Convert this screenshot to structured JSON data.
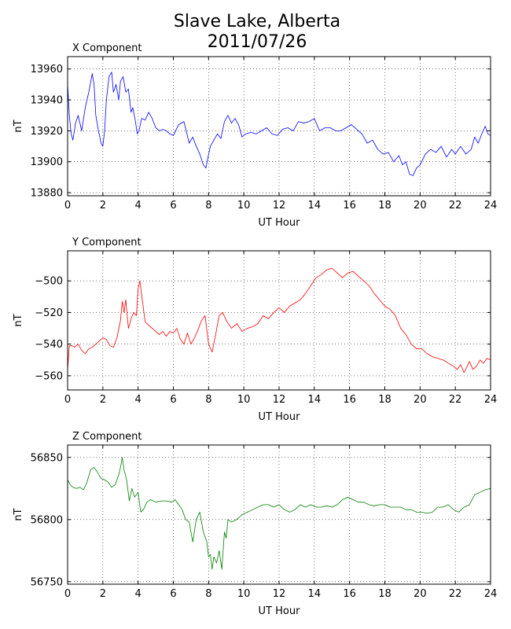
{
  "figure": {
    "title_line1": "Slave Lake, Alberta",
    "title_line2": "2011/07/26"
  },
  "chart_data": [
    {
      "type": "line",
      "title": "X Component",
      "xlabel": "UT Hour",
      "ylabel": "nT",
      "xlim": [
        0,
        24
      ],
      "ylim": [
        13878,
        13968
      ],
      "xticks": [
        0,
        2,
        4,
        6,
        8,
        10,
        12,
        14,
        16,
        18,
        20,
        22,
        24
      ],
      "yticks": [
        13880,
        13900,
        13920,
        13940,
        13960
      ],
      "grid": true,
      "color": "#0000ff",
      "series": [
        {
          "x": [
            0,
            0.1,
            0.2,
            0.3,
            0.45,
            0.6,
            0.8,
            1.0,
            1.2,
            1.4,
            1.5,
            1.6,
            1.75,
            1.9,
            2.0,
            2.1,
            2.2,
            2.35,
            2.5,
            2.6,
            2.75,
            2.9,
            3.0,
            3.15,
            3.3,
            3.45,
            3.6,
            3.7,
            3.85,
            3.95,
            4.05,
            4.2,
            4.4,
            4.6,
            4.8,
            5.0,
            5.2,
            5.4,
            5.6,
            5.8,
            6.0,
            6.3,
            6.6,
            6.9,
            7.1,
            7.3,
            7.5,
            7.7,
            7.85,
            7.95,
            8.1,
            8.3,
            8.5,
            8.7,
            8.9,
            9.1,
            9.3,
            9.5,
            9.7,
            9.9,
            10.1,
            10.4,
            10.7,
            11.0,
            11.3,
            11.6,
            11.9,
            12.2,
            12.5,
            12.8,
            13.1,
            13.4,
            13.7,
            14.0,
            14.3,
            14.6,
            14.9,
            15.2,
            15.5,
            15.8,
            16.1,
            16.4,
            16.7,
            17.0,
            17.3,
            17.6,
            17.9,
            18.2,
            18.5,
            18.8,
            19.0,
            19.2,
            19.4,
            19.6,
            19.8,
            20.0,
            20.3,
            20.6,
            20.9,
            21.2,
            21.5,
            21.8,
            22.0,
            22.3,
            22.6,
            22.9,
            23.1,
            23.3,
            23.5,
            23.7,
            23.85,
            24.0
          ],
          "y": [
            13950,
            13930,
            13918,
            13914,
            13925,
            13930,
            13920,
            13935,
            13945,
            13957,
            13950,
            13930,
            13920,
            13912,
            13910,
            13920,
            13940,
            13955,
            13958,
            13945,
            13950,
            13940,
            13952,
            13955,
            13945,
            13947,
            13932,
            13935,
            13926,
            13918,
            13920,
            13928,
            13927,
            13932,
            13928,
            13922,
            13920,
            13921,
            13920,
            13918,
            13917,
            13924,
            13926,
            13912,
            13916,
            13910,
            13905,
            13898,
            13896,
            13902,
            13910,
            13914,
            13918,
            13915,
            13926,
            13930,
            13925,
            13928,
            13924,
            13916,
            13918,
            13919,
            13918,
            13920,
            13922,
            13918,
            13917,
            13921,
            13922,
            13920,
            13926,
            13925,
            13926,
            13928,
            13920,
            13922,
            13922,
            13920,
            13920,
            13922,
            13924,
            13921,
            13918,
            13912,
            13914,
            13908,
            13905,
            13906,
            13900,
            13904,
            13898,
            13900,
            13892,
            13891,
            13896,
            13898,
            13905,
            13908,
            13906,
            13910,
            13903,
            13908,
            13905,
            13910,
            13905,
            13908,
            13916,
            13912,
            13918,
            13923,
            13918,
            13917
          ]
        }
      ]
    },
    {
      "type": "line",
      "title": "Y Component",
      "xlabel": "UT Hour",
      "ylabel": "nT",
      "xlim": [
        0,
        24
      ],
      "ylim": [
        -569,
        -481
      ],
      "xticks": [
        0,
        2,
        4,
        6,
        8,
        10,
        12,
        14,
        16,
        18,
        20,
        22,
        24
      ],
      "yticks": [
        -560,
        -540,
        -520,
        -500
      ],
      "grid": true,
      "color": "#ff0000",
      "series": [
        {
          "x": [
            0,
            0.1,
            0.25,
            0.4,
            0.6,
            0.8,
            1.0,
            1.2,
            1.4,
            1.6,
            1.8,
            2.0,
            2.2,
            2.4,
            2.6,
            2.8,
            3.0,
            3.1,
            3.2,
            3.3,
            3.45,
            3.6,
            3.75,
            3.9,
            4.0,
            4.1,
            4.25,
            4.4,
            4.6,
            4.8,
            5.0,
            5.2,
            5.4,
            5.6,
            5.8,
            6.0,
            6.2,
            6.4,
            6.6,
            6.8,
            7.0,
            7.2,
            7.4,
            7.6,
            7.8,
            8.0,
            8.2,
            8.4,
            8.6,
            8.8,
            9.0,
            9.3,
            9.6,
            9.9,
            10.2,
            10.5,
            10.8,
            11.1,
            11.4,
            11.7,
            12.0,
            12.3,
            12.6,
            12.9,
            13.2,
            13.5,
            13.8,
            14.1,
            14.4,
            14.7,
            15.0,
            15.3,
            15.6,
            15.9,
            16.2,
            16.5,
            16.8,
            17.1,
            17.4,
            17.7,
            18.0,
            18.3,
            18.6,
            18.9,
            19.2,
            19.5,
            19.8,
            20.1,
            20.4,
            20.7,
            21.0,
            21.3,
            21.6,
            21.9,
            22.1,
            22.3,
            22.5,
            22.8,
            23.0,
            23.2,
            23.4,
            23.6,
            23.8,
            24.0
          ],
          "y": [
            -556,
            -541,
            -541,
            -542,
            -540,
            -544,
            -546,
            -543,
            -542,
            -540,
            -538,
            -536,
            -537,
            -541,
            -542,
            -536,
            -525,
            -513,
            -520,
            -512,
            -530,
            -524,
            -520,
            -522,
            -505,
            -500,
            -513,
            -526,
            -528,
            -530,
            -532,
            -534,
            -532,
            -535,
            -532,
            -533,
            -530,
            -537,
            -540,
            -533,
            -540,
            -536,
            -531,
            -525,
            -522,
            -540,
            -545,
            -534,
            -522,
            -520,
            -525,
            -530,
            -527,
            -532,
            -530,
            -529,
            -527,
            -522,
            -524,
            -520,
            -517,
            -520,
            -516,
            -514,
            -512,
            -508,
            -503,
            -498,
            -496,
            -493,
            -492,
            -495,
            -498,
            -495,
            -494,
            -497,
            -500,
            -503,
            -508,
            -512,
            -516,
            -518,
            -522,
            -530,
            -534,
            -540,
            -543,
            -543,
            -546,
            -548,
            -549,
            -550,
            -552,
            -554,
            -556,
            -553,
            -558,
            -551,
            -556,
            -554,
            -550,
            -552,
            -549,
            -550
          ]
        }
      ]
    },
    {
      "type": "line",
      "title": "Z Component",
      "xlabel": "UT Hour",
      "ylabel": "nT",
      "xlim": [
        0,
        24
      ],
      "ylim": [
        56748,
        56860
      ],
      "xticks": [
        0,
        2,
        4,
        6,
        8,
        10,
        12,
        14,
        16,
        18,
        20,
        22,
        24
      ],
      "yticks": [
        56750,
        56800,
        56850
      ],
      "grid": true,
      "color": "#008000",
      "series": [
        {
          "x": [
            0,
            0.15,
            0.3,
            0.5,
            0.7,
            0.9,
            1.1,
            1.3,
            1.5,
            1.7,
            1.9,
            2.1,
            2.3,
            2.5,
            2.7,
            2.9,
            3.0,
            3.1,
            3.2,
            3.35,
            3.5,
            3.65,
            3.8,
            4.0,
            4.15,
            4.3,
            4.5,
            4.7,
            5.0,
            5.3,
            5.6,
            5.9,
            6.1,
            6.3,
            6.5,
            6.7,
            6.9,
            7.1,
            7.3,
            7.5,
            7.7,
            7.9,
            8.0,
            8.1,
            8.2,
            8.3,
            8.45,
            8.6,
            8.75,
            8.9,
            9.0,
            9.1,
            9.3,
            9.6,
            9.9,
            10.2,
            10.5,
            10.8,
            11.1,
            11.4,
            11.7,
            12.0,
            12.3,
            12.6,
            12.9,
            13.2,
            13.5,
            13.8,
            14.1,
            14.4,
            14.7,
            15.0,
            15.3,
            15.6,
            15.9,
            16.2,
            16.5,
            16.8,
            17.1,
            17.4,
            17.7,
            18.0,
            18.3,
            18.6,
            18.9,
            19.2,
            19.5,
            19.8,
            20.1,
            20.4,
            20.7,
            21.0,
            21.3,
            21.6,
            21.9,
            22.2,
            22.5,
            22.8,
            23.1,
            23.4,
            23.7,
            24.0
          ],
          "y": [
            56832,
            56828,
            56826,
            56825,
            56826,
            56824,
            56830,
            56840,
            56842,
            56838,
            56833,
            56832,
            56830,
            56826,
            56828,
            56836,
            56842,
            56850,
            56840,
            56832,
            56815,
            56825,
            56818,
            56822,
            56806,
            56808,
            56814,
            56816,
            56814,
            56815,
            56815,
            56814,
            56816,
            56812,
            56808,
            56800,
            56798,
            56782,
            56800,
            56806,
            56790,
            56782,
            56770,
            56772,
            56760,
            56770,
            56765,
            56775,
            56760,
            56790,
            56785,
            56800,
            56798,
            56800,
            56804,
            56806,
            56808,
            56810,
            56812,
            56812,
            56810,
            56812,
            56808,
            56806,
            56808,
            56812,
            56810,
            56812,
            56810,
            56810,
            56811,
            56810,
            56812,
            56816,
            56818,
            56816,
            56814,
            56814,
            56812,
            56811,
            56812,
            56812,
            56810,
            56810,
            56810,
            56808,
            56808,
            56806,
            56806,
            56805,
            56806,
            56810,
            56810,
            56812,
            56808,
            56806,
            56810,
            56812,
            56820,
            56822,
            56824,
            56825
          ]
        }
      ]
    }
  ]
}
